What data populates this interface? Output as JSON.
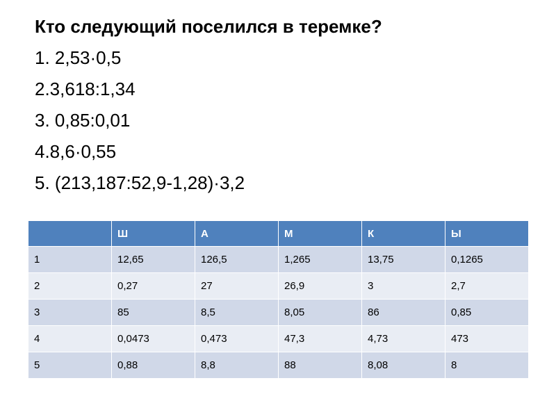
{
  "title": "Кто следующий поселился в теремке?",
  "tasks": [
    "1. 2,53·0,5",
    "2.3,618:1,34",
    "3. 0,85:0,01",
    "4.8,6·0,55",
    "5. (213,187:52,9-1,28)·3,2"
  ],
  "table": {
    "headers": [
      "",
      "Ш",
      "А",
      "М",
      "К",
      "Ы"
    ],
    "rows": [
      [
        "1",
        "12,65",
        "126,5",
        "1,265",
        "13,75",
        "0,1265"
      ],
      [
        "2",
        "0,27",
        "27",
        "26,9",
        "3",
        "2,7"
      ],
      [
        "3",
        "85",
        "8,5",
        "8,05",
        "86",
        "0,85"
      ],
      [
        "4",
        "0,0473",
        "0,473",
        "47,3",
        "4,73",
        "473"
      ],
      [
        "5",
        "0,88",
        "8,8",
        "88",
        "8,08",
        "8"
      ]
    ]
  },
  "colors": {
    "header_bg": "#4f81bd",
    "row_odd_bg": "#d0d8e8",
    "row_even_bg": "#e9edf4"
  }
}
